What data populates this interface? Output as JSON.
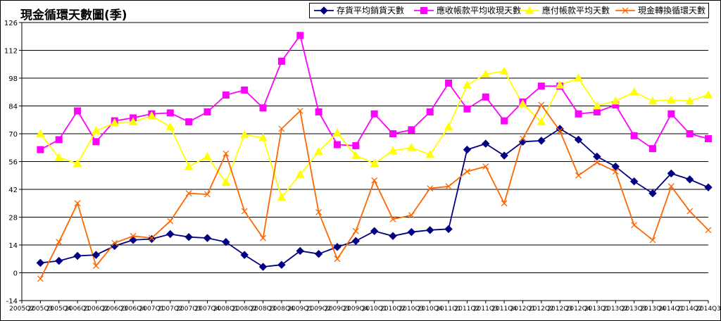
{
  "chart_data": {
    "type": "line",
    "title": "現金循環天數圖(季)",
    "xlabel": "",
    "ylabel": "",
    "ylim": [
      -14,
      126
    ],
    "yticks": [
      -14,
      0,
      14,
      28,
      42,
      56,
      70,
      84,
      98,
      112,
      126
    ],
    "grid": true,
    "legend_position": "top-right",
    "categories": [
      "2005Q2",
      "2005Q3",
      "2005Q4",
      "2006Q1",
      "2006Q2",
      "2006Q3",
      "2006Q4",
      "2007Q1",
      "2007Q2",
      "2007Q3",
      "2007Q4",
      "2008Q1",
      "2008Q2",
      "2008Q3",
      "2008Q4",
      "2009Q1",
      "2009Q2",
      "2009Q3",
      "2009Q4",
      "2010Q1",
      "2010Q2",
      "2010Q3",
      "2010Q4",
      "2011Q1",
      "2011Q2",
      "2011Q3",
      "2011Q4",
      "2012Q1",
      "2012Q2",
      "2012Q3",
      "2012Q4",
      "2013Q1",
      "2013Q2",
      "2013Q3",
      "2013Q4",
      "2014Q1",
      "2014Q2",
      "2014Q3"
    ],
    "series": [
      {
        "name": "存貨平均銷貨天數",
        "color": "#000080",
        "marker": "diamond",
        "values": [
          null,
          5,
          6,
          8.5,
          9,
          13.5,
          16.5,
          17,
          19.5,
          18,
          17.5,
          15.5,
          9,
          3,
          4,
          11,
          9.5,
          13,
          16,
          21,
          18.5,
          20.5,
          21.5,
          22,
          62,
          65,
          59,
          66,
          66.5,
          72.5,
          67,
          58.5,
          53.5,
          46,
          40,
          50,
          47,
          43
        ]
      },
      {
        "name": "應收帳款平均收現天數",
        "color": "#ff00ff",
        "marker": "square",
        "values": [
          null,
          62,
          67,
          81.5,
          66,
          76.5,
          78,
          80,
          80.5,
          76,
          81,
          89.5,
          92,
          83,
          106.5,
          119.5,
          81,
          64.5,
          64,
          80,
          70,
          72,
          81,
          95.5,
          82.5,
          88.5,
          76.5,
          86,
          94,
          94,
          80,
          81,
          84.5,
          69,
          62.5,
          80,
          70,
          67.5
        ]
      },
      {
        "name": "應付帳款平均天數",
        "color": "#ffff00",
        "marker": "triangle",
        "values": [
          null,
          70,
          58,
          55,
          71.5,
          75.5,
          76,
          79,
          73.5,
          53.5,
          58.5,
          45.5,
          69.5,
          68,
          38,
          49.5,
          61,
          70.5,
          59,
          55,
          61.5,
          63,
          59.5,
          73.5,
          94.5,
          100,
          101.5,
          85,
          76,
          94.5,
          98,
          84,
          86.5,
          91,
          86.5,
          87,
          86.5,
          89.5
        ]
      },
      {
        "name": "現金轉換循環天數",
        "color": "#ff6600",
        "marker": "x",
        "values": [
          null,
          -3,
          15.5,
          35,
          3.5,
          15,
          18.5,
          17.5,
          26,
          40,
          39.5,
          60,
          31,
          17.5,
          72.5,
          81.5,
          30.5,
          7,
          21,
          46.5,
          27,
          29,
          42.5,
          43.5,
          51,
          53.5,
          35,
          67.5,
          84.5,
          71.5,
          49,
          55.5,
          51,
          24,
          16.5,
          43.5,
          31,
          21.5
        ]
      }
    ]
  }
}
